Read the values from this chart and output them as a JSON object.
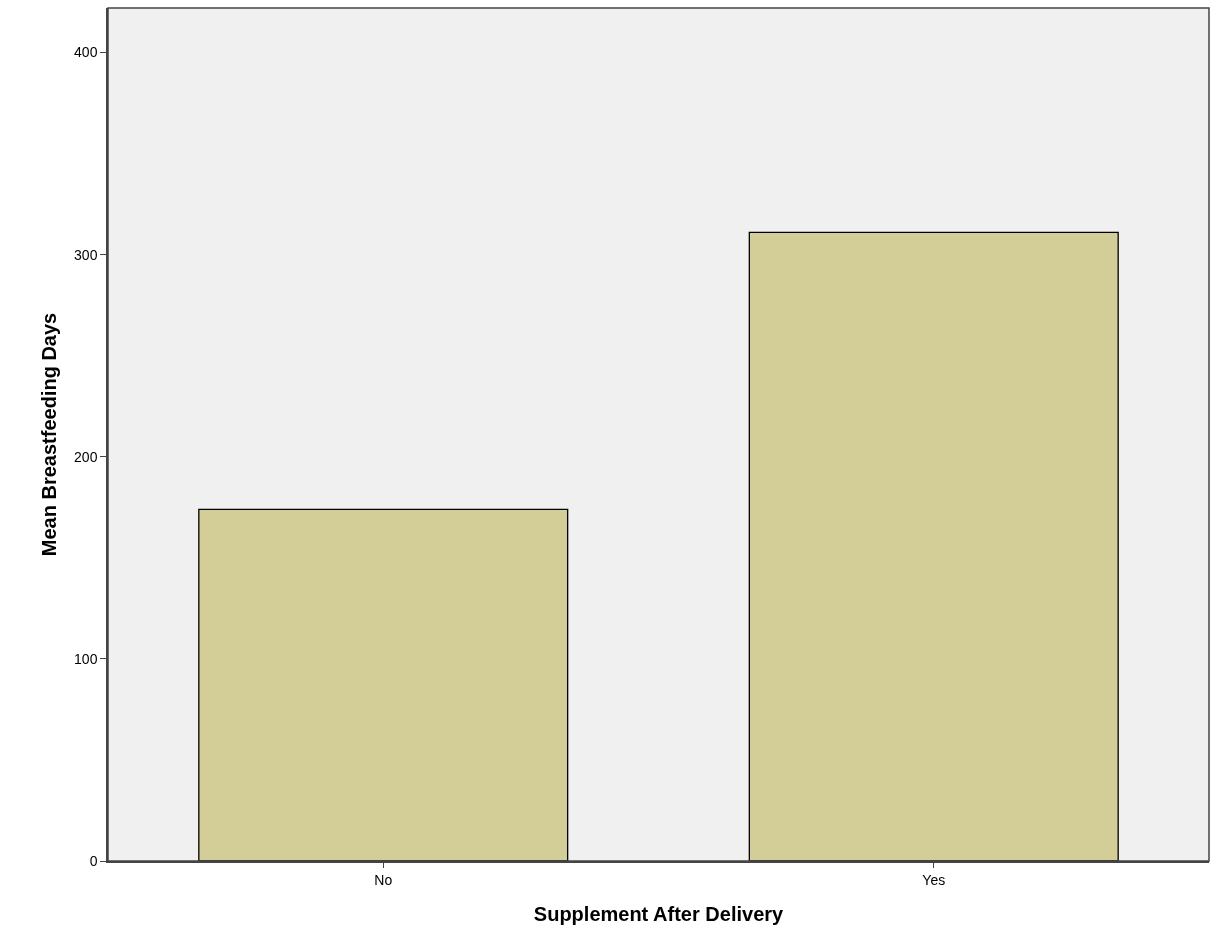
{
  "chart_data": {
    "type": "bar",
    "xlabel": "Supplement After Delivery",
    "ylabel": "Mean Breastfeeding Days",
    "categories": [
      "No",
      "Yes"
    ],
    "values": [
      174,
      311
    ],
    "color": "#d3ce97",
    "ylim": [
      0,
      422
    ],
    "yticks": [
      0,
      100,
      200,
      300,
      400
    ]
  }
}
